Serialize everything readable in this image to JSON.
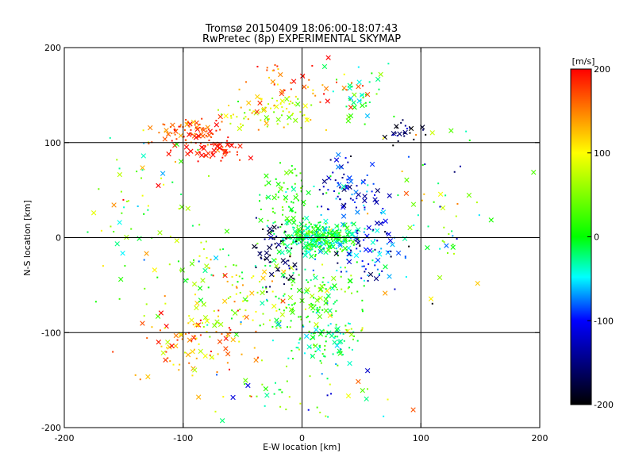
{
  "chart_data": {
    "type": "scatter",
    "title_line1": "Tromsø 20150409 18:06:00-18:07:43",
    "title_line2": "RwPretec (8p) EXPERIMENTAL SKYMAP",
    "xlabel": "E-W location [km]",
    "ylabel": "N-S location [km]",
    "xlim": [
      -200,
      200
    ],
    "ylim": [
      -200,
      200
    ],
    "x_ticks": [
      "-200",
      "-100",
      "0",
      "100",
      "200"
    ],
    "y_ticks": [
      "-200",
      "-100",
      "0",
      "100",
      "200"
    ],
    "gridlines": [
      -100,
      0,
      100
    ],
    "grid": true,
    "colorbar": {
      "label": "[m/s]",
      "range": [
        -200,
        200
      ],
      "ticks": [
        "200",
        "100",
        "0",
        "-100",
        "-200"
      ],
      "colormap": [
        "#ff0000",
        "#ffff00",
        "#00ff00",
        "#00ffff",
        "#0000ff",
        "#000000"
      ]
    },
    "markers": [
      "dot",
      "x"
    ],
    "clusters": [
      {
        "x": -95,
        "y": 110,
        "sx": 22,
        "sy": 12,
        "n": 90,
        "v": 170,
        "sv": 35
      },
      {
        "x": -70,
        "y": 92,
        "sx": 15,
        "sy": 8,
        "n": 50,
        "v": 190,
        "sv": 20
      },
      {
        "x": -30,
        "y": 130,
        "sx": 30,
        "sy": 15,
        "n": 80,
        "v": 80,
        "sv": 50
      },
      {
        "x": 50,
        "y": 150,
        "sx": 20,
        "sy": 25,
        "n": 40,
        "v": -10,
        "sv": 50
      },
      {
        "x": 85,
        "y": 110,
        "sx": 12,
        "sy": 8,
        "n": 25,
        "v": -170,
        "sv": 40
      },
      {
        "x": 15,
        "y": 0,
        "sx": 22,
        "sy": 12,
        "n": 320,
        "v": -10,
        "sv": 45
      },
      {
        "x": 40,
        "y": 50,
        "sx": 20,
        "sy": 25,
        "n": 80,
        "v": -110,
        "sv": 50
      },
      {
        "x": 55,
        "y": -15,
        "sx": 25,
        "sy": 25,
        "n": 80,
        "v": -100,
        "sv": 60
      },
      {
        "x": -10,
        "y": 40,
        "sx": 20,
        "sy": 25,
        "n": 80,
        "v": 10,
        "sv": 40
      },
      {
        "x": 10,
        "y": -70,
        "sx": 30,
        "sy": 30,
        "n": 150,
        "v": 20,
        "sv": 70
      },
      {
        "x": 20,
        "y": -110,
        "sx": 18,
        "sy": 15,
        "n": 60,
        "v": -20,
        "sv": 40
      },
      {
        "x": -60,
        "y": -50,
        "sx": 40,
        "sy": 35,
        "n": 120,
        "v": 70,
        "sv": 80
      },
      {
        "x": -90,
        "y": -110,
        "sx": 40,
        "sy": 30,
        "n": 90,
        "v": 140,
        "sv": 60
      },
      {
        "x": -130,
        "y": 30,
        "sx": 35,
        "sy": 60,
        "n": 70,
        "v": 60,
        "sv": 100
      },
      {
        "x": 110,
        "y": 20,
        "sx": 40,
        "sy": 80,
        "n": 60,
        "v": 0,
        "sv": 120
      },
      {
        "x": -20,
        "y": -20,
        "sx": 15,
        "sy": 25,
        "n": 60,
        "v": -170,
        "sv": 30
      },
      {
        "x": 0,
        "y": 160,
        "sx": 40,
        "sy": 20,
        "n": 50,
        "v": 160,
        "sv": 50
      },
      {
        "x": 0,
        "y": -160,
        "sx": 60,
        "sy": 25,
        "n": 50,
        "v": 20,
        "sv": 100
      }
    ]
  }
}
